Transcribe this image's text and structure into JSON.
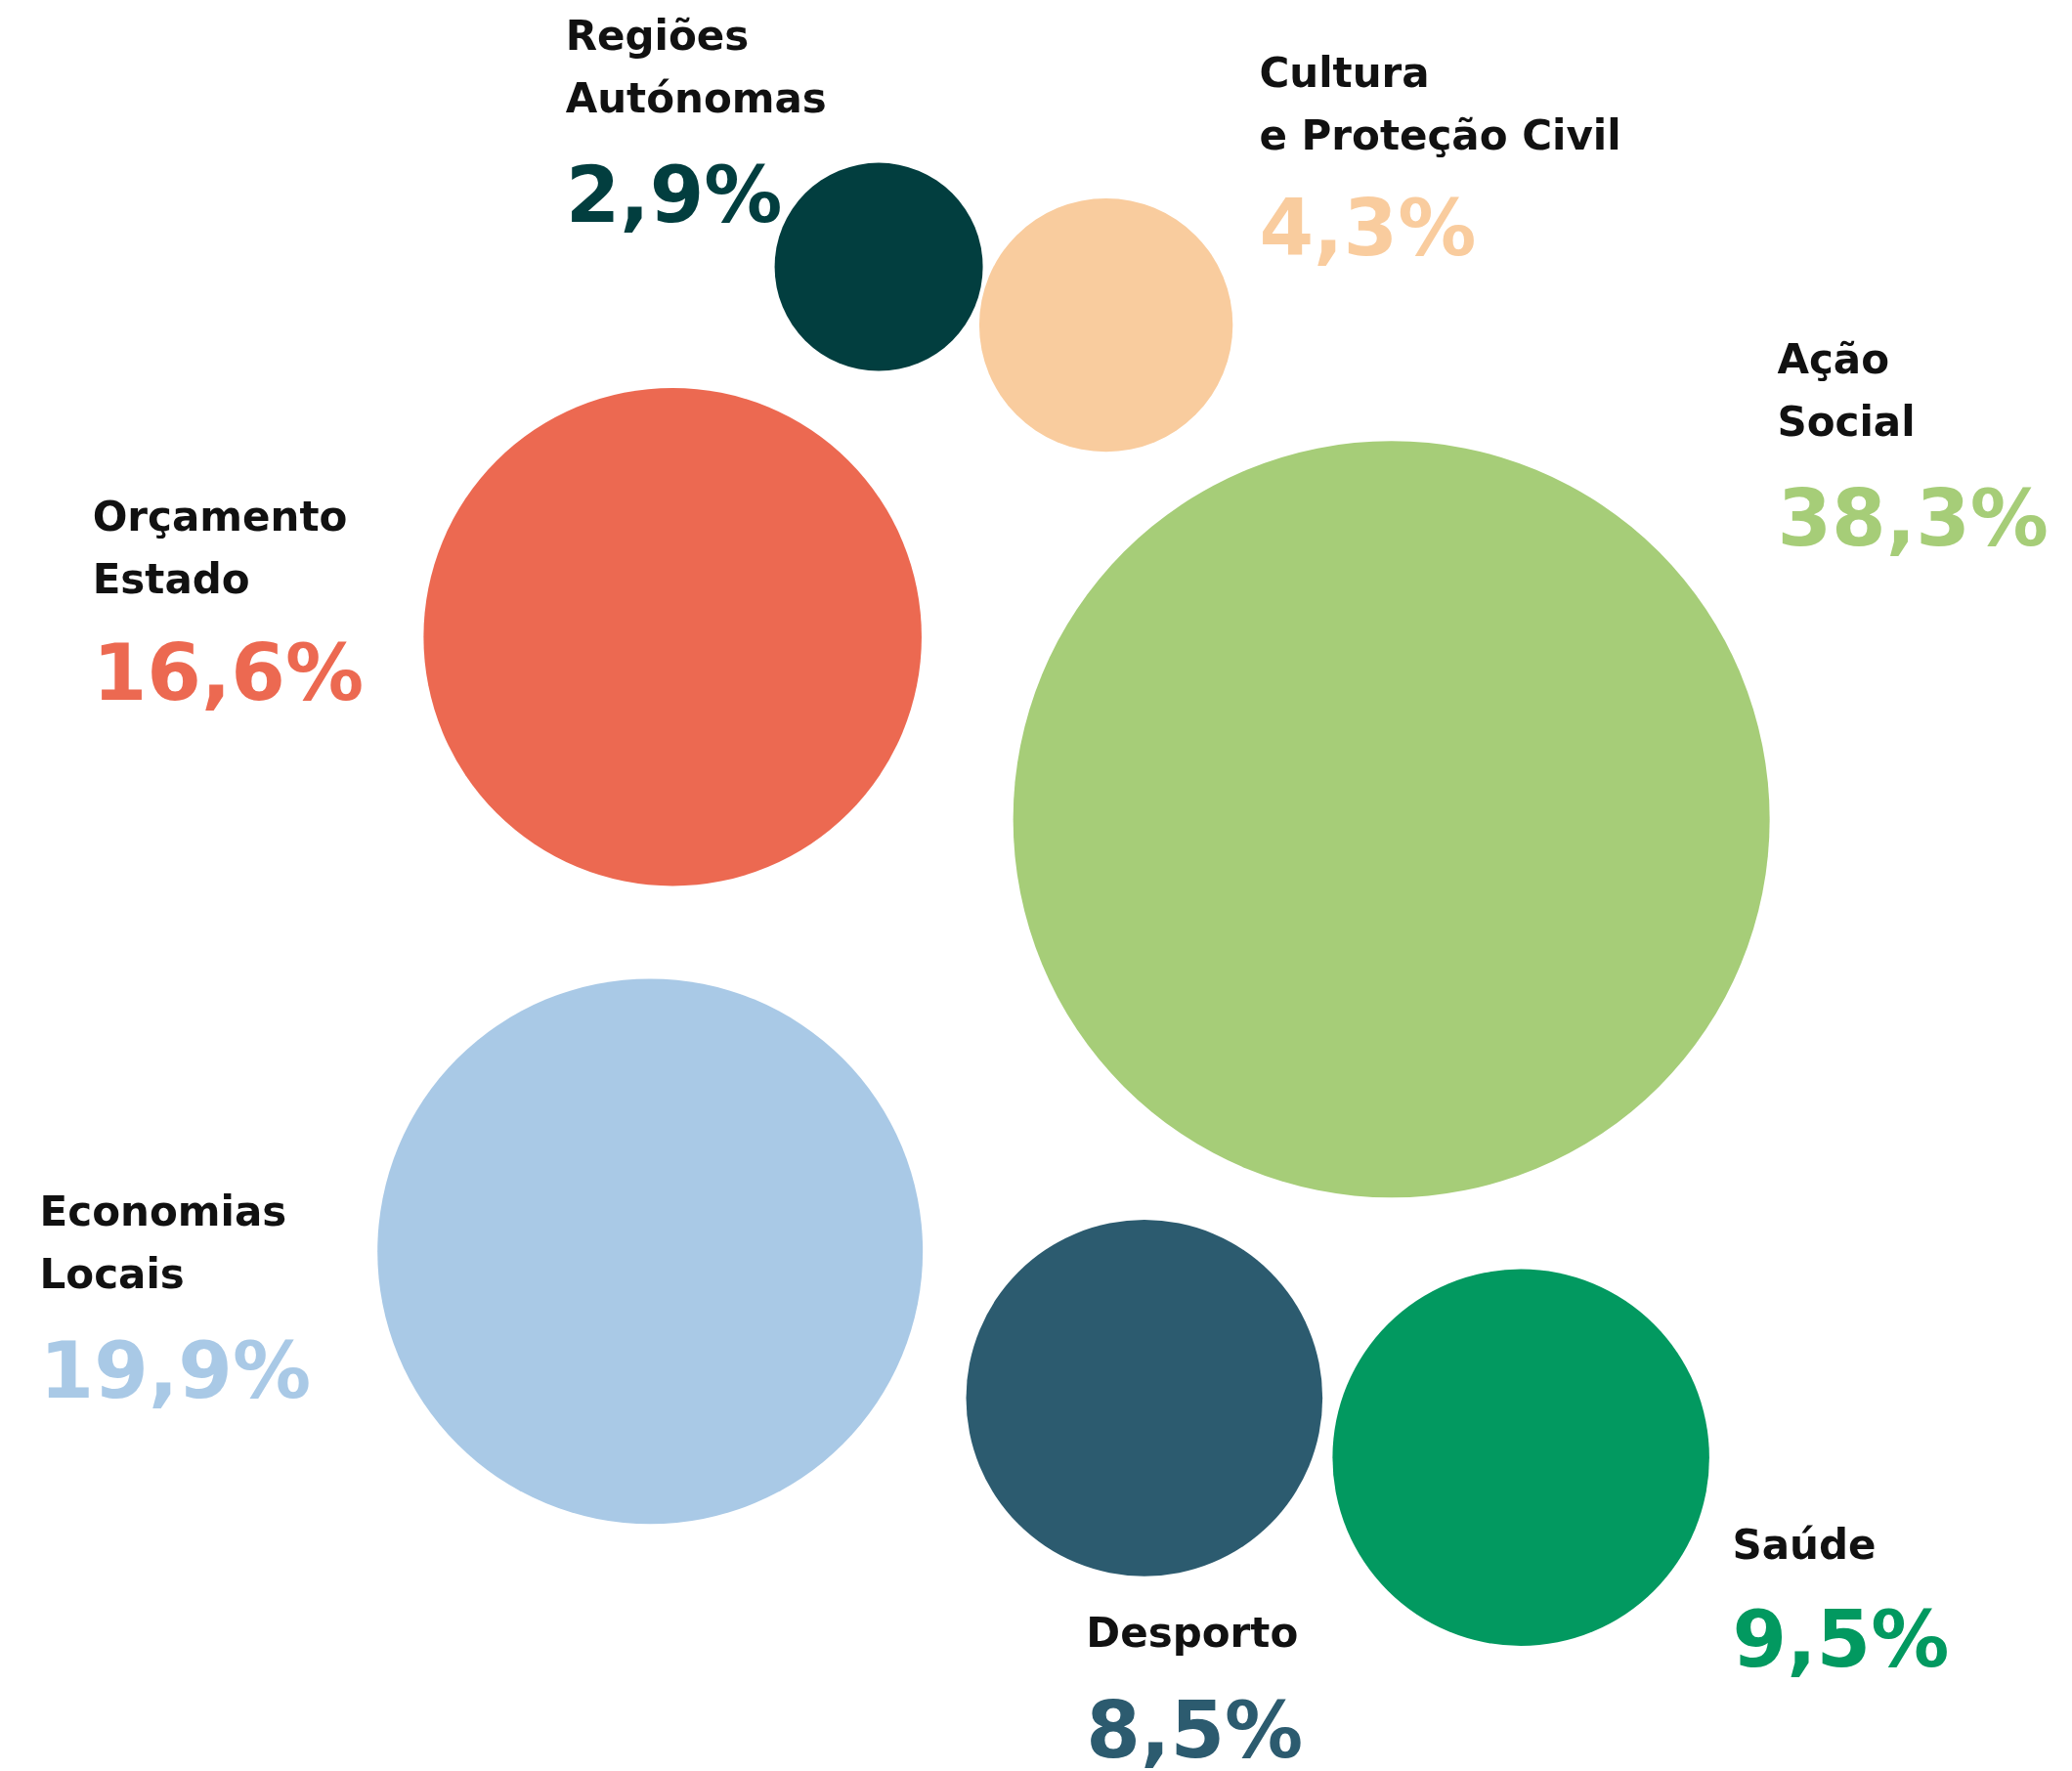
{
  "chart_data": {
    "type": "other",
    "categories": [
      "Regiões Autónomas",
      "Cultura e Proteção Civil",
      "Ação Social",
      "Orçamento Estado",
      "Economias Locais",
      "Desporto",
      "Saúde"
    ],
    "values": [
      2.9,
      4.3,
      38.3,
      16.6,
      19.9,
      8.5,
      9.5
    ],
    "value_labels": [
      "2,9%",
      "4,3%",
      "38,3%",
      "16,6%",
      "19,9%",
      "8,5%",
      "9,5%"
    ],
    "colors": [
      "#023e3f",
      "#f9cc9e",
      "#a6cd78",
      "#ec6951",
      "#a9c9e6",
      "#2c5b6f",
      "#029960"
    ]
  }
}
